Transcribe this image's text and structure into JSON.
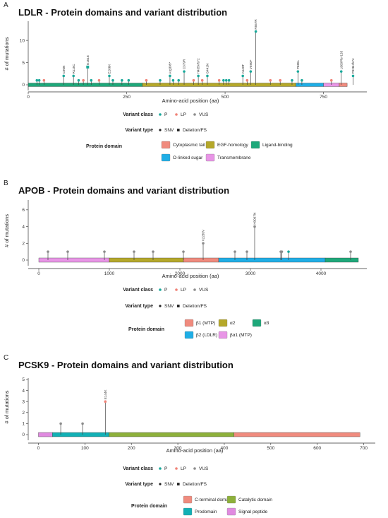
{
  "chart_data": [
    {
      "type": "lollipop",
      "panel": "A",
      "title": "LDLR - Protein domains and variant distribution",
      "xlabel": "Amino-acid position (aa)",
      "ylabel": "# of mutations",
      "xlim": [
        0,
        860
      ],
      "ylim": [
        0,
        14
      ],
      "xticks": [
        0,
        250,
        500,
        750
      ],
      "yticks": [
        0,
        5,
        10
      ],
      "domains": [
        {
          "name": "Ligand-binding",
          "start": 0,
          "end": 290
        },
        {
          "name": "EGF-homology",
          "start": 290,
          "end": 680
        },
        {
          "name": "O-linked sugar",
          "start": 680,
          "end": 750
        },
        {
          "name": "Transmembrane",
          "start": 750,
          "end": 790
        },
        {
          "name": "Cytoplasmic tail",
          "start": 790,
          "end": 810
        }
      ],
      "variants": [
        {
          "pos": 22,
          "count": 1,
          "cls": "P",
          "type": "SNV"
        },
        {
          "pos": 28,
          "count": 1,
          "cls": "P",
          "type": "SNV"
        },
        {
          "pos": 40,
          "count": 1,
          "cls": "LP",
          "type": "SNV"
        },
        {
          "pos": 90,
          "count": 2,
          "cls": "P",
          "type": "SNV",
          "label": "C90N"
        },
        {
          "pos": 115,
          "count": 2,
          "cls": "P",
          "type": "SNV",
          "label": "R115C"
        },
        {
          "pos": 128,
          "count": 1,
          "cls": "P",
          "type": "SNV"
        },
        {
          "pos": 140,
          "count": 1,
          "cls": "LP",
          "type": "SNV"
        },
        {
          "pos": 151,
          "count": 4,
          "cls": "P",
          "type": "Deletion/FS",
          "label": "E151E"
        },
        {
          "pos": 160,
          "count": 1,
          "cls": "P",
          "type": "SNV"
        },
        {
          "pos": 180,
          "count": 1,
          "cls": "LP",
          "type": "SNV"
        },
        {
          "pos": 206,
          "count": 2,
          "cls": "P",
          "type": "SNV",
          "label": "E206K"
        },
        {
          "pos": 215,
          "count": 1,
          "cls": "P",
          "type": "SNV"
        },
        {
          "pos": 238,
          "count": 1,
          "cls": "P",
          "type": "SNV"
        },
        {
          "pos": 255,
          "count": 1,
          "cls": "P",
          "type": "SNV"
        },
        {
          "pos": 300,
          "count": 1,
          "cls": "LP",
          "type": "SNV"
        },
        {
          "pos": 335,
          "count": 1,
          "cls": "P",
          "type": "SNV"
        },
        {
          "pos": 360,
          "count": 2,
          "cls": "P",
          "type": "SNV",
          "label": "Arg395*"
        },
        {
          "pos": 368,
          "count": 1,
          "cls": "P",
          "type": "SNV"
        },
        {
          "pos": 382,
          "count": 1,
          "cls": "P",
          "type": "SNV"
        },
        {
          "pos": 396,
          "count": 3,
          "cls": "P",
          "type": "SNV",
          "label": "C379R"
        },
        {
          "pos": 420,
          "count": 1,
          "cls": "LP",
          "type": "SNV"
        },
        {
          "pos": 432,
          "count": 2,
          "cls": "P",
          "type": "SNV",
          "label": "H435Vfs*2"
        },
        {
          "pos": 442,
          "count": 1,
          "cls": "LP",
          "type": "SNV"
        },
        {
          "pos": 455,
          "count": 2,
          "cls": "P",
          "type": "SNV",
          "label": "G441N"
        },
        {
          "pos": 485,
          "count": 1,
          "cls": "LP",
          "type": "SNV"
        },
        {
          "pos": 496,
          "count": 1,
          "cls": "P",
          "type": "SNV"
        },
        {
          "pos": 503,
          "count": 1,
          "cls": "P",
          "type": "SNV"
        },
        {
          "pos": 510,
          "count": 1,
          "cls": "P",
          "type": "SNV"
        },
        {
          "pos": 545,
          "count": 2,
          "cls": "P",
          "type": "SNV",
          "label": "A540T"
        },
        {
          "pos": 556,
          "count": 1,
          "cls": "LP",
          "type": "SNV"
        },
        {
          "pos": 565,
          "count": 3,
          "cls": "P",
          "type": "SNV",
          "label": "V590F"
        },
        {
          "pos": 578,
          "count": 12,
          "cls": "P",
          "type": "SNV",
          "label": "R557R"
        },
        {
          "pos": 615,
          "count": 1,
          "cls": "LP",
          "type": "SNV"
        },
        {
          "pos": 640,
          "count": 1,
          "cls": "LP",
          "type": "SNV"
        },
        {
          "pos": 670,
          "count": 1,
          "cls": "P",
          "type": "SNV"
        },
        {
          "pos": 685,
          "count": 3,
          "cls": "P",
          "type": "SNV",
          "label": "P685L"
        },
        {
          "pos": 695,
          "count": 1,
          "cls": "P",
          "type": "SNV"
        },
        {
          "pos": 770,
          "count": 1,
          "cls": "LP",
          "type": "SNV"
        },
        {
          "pos": 795,
          "count": 3,
          "cls": "P",
          "type": "SNV",
          "label": "L800Pfs*135"
        },
        {
          "pos": 825,
          "count": 2,
          "cls": "P",
          "type": "SNV",
          "label": "P826Hfs*4"
        }
      ],
      "legend": {
        "variant_class_title": "Variant class",
        "variant_class": [
          {
            "label": "P",
            "color": "#1aa99b"
          },
          {
            "label": "LP",
            "color": "#f08277"
          },
          {
            "label": "VUS",
            "color": "#8c8c8c"
          }
        ],
        "variant_type_title": "Variant type",
        "variant_type": [
          "SNV",
          "Deletion/FS"
        ],
        "protein_domain_title": "Protein domain",
        "protein_domain": [
          {
            "label": "Cytoplasmic tail",
            "color": "#f08b7e"
          },
          {
            "label": "EGF-homology",
            "color": "#b5a82a"
          },
          {
            "label": "Ligand-binding",
            "color": "#1ea87a"
          },
          {
            "label": "O-linked sugar",
            "color": "#1faee6"
          },
          {
            "label": "Transmembrane",
            "color": "#e895e6"
          }
        ]
      }
    },
    {
      "type": "lollipop",
      "panel": "B",
      "title": "APOB - Protein domains and variant distribution",
      "xlabel": "Amino-acid position (aa)",
      "ylabel": "# of mutations",
      "xlim": [
        -150,
        4650
      ],
      "ylim": [
        0,
        7
      ],
      "xticks": [
        0,
        1000,
        2000,
        3000,
        4000
      ],
      "yticks": [
        0,
        2,
        4,
        6
      ],
      "domains": [
        {
          "name": "βα1 (MTP)",
          "start": 0,
          "end": 1000
        },
        {
          "name": "α2",
          "start": 1000,
          "end": 2050
        },
        {
          "name": "β1 (MTP)",
          "start": 2050,
          "end": 2550
        },
        {
          "name": "β2 (LDLR)",
          "start": 2550,
          "end": 4060
        },
        {
          "name": "α3",
          "start": 4060,
          "end": 4530
        }
      ],
      "variants": [
        {
          "pos": 130,
          "count": 1,
          "cls": "VUS",
          "type": "SNV"
        },
        {
          "pos": 410,
          "count": 1,
          "cls": "VUS",
          "type": "SNV"
        },
        {
          "pos": 930,
          "count": 1,
          "cls": "VUS",
          "type": "SNV"
        },
        {
          "pos": 1350,
          "count": 1,
          "cls": "VUS",
          "type": "SNV"
        },
        {
          "pos": 1620,
          "count": 1,
          "cls": "VUS",
          "type": "SNV"
        },
        {
          "pos": 2050,
          "count": 1,
          "cls": "VUS",
          "type": "SNV"
        },
        {
          "pos": 2330,
          "count": 2,
          "cls": "VUS",
          "type": "SNV",
          "label": "V2285V"
        },
        {
          "pos": 2780,
          "count": 1,
          "cls": "VUS",
          "type": "SNV"
        },
        {
          "pos": 2950,
          "count": 1,
          "cls": "VUS",
          "type": "SNV"
        },
        {
          "pos": 3060,
          "count": 4,
          "cls": "VUS",
          "type": "SNV",
          "label": "H3067N"
        },
        {
          "pos": 3430,
          "count": 1,
          "cls": "VUS",
          "type": "SNV"
        },
        {
          "pos": 3445,
          "count": 1,
          "cls": "VUS",
          "type": "SNV"
        },
        {
          "pos": 3540,
          "count": 1,
          "cls": "P",
          "type": "SNV"
        },
        {
          "pos": 4420,
          "count": 1,
          "cls": "VUS",
          "type": "SNV"
        }
      ],
      "legend": {
        "variant_class_title": "Variant class",
        "variant_class": [
          {
            "label": "P",
            "color": "#1aa99b"
          },
          {
            "label": "LP",
            "color": "#f08277"
          },
          {
            "label": "VUS",
            "color": "#8c8c8c"
          }
        ],
        "variant_type_title": "Variant type",
        "variant_type": [
          "SNV",
          "Deletion/FS"
        ],
        "protein_domain_title": "Protein domain",
        "protein_domain": [
          {
            "label": "β1 (MTP)",
            "color": "#f08b7e"
          },
          {
            "label": "α2",
            "color": "#b5a82a"
          },
          {
            "label": "α3",
            "color": "#1ea87a"
          },
          {
            "label": "β2 (LDLR)",
            "color": "#1faee6"
          },
          {
            "label": "βα1 (MTP)",
            "color": "#e895e6"
          }
        ]
      }
    },
    {
      "type": "lollipop",
      "panel": "C",
      "title": "PCSK9 - Protein domains and variant distribution",
      "xlabel": "Amino-acid position (aa)",
      "ylabel": "# of mutations",
      "xlim": [
        -22,
        725
      ],
      "ylim": [
        0,
        5
      ],
      "xticks": [
        0,
        100,
        200,
        300,
        400,
        500,
        600,
        700
      ],
      "yticks": [
        0,
        1,
        2,
        3,
        4,
        5
      ],
      "domains": [
        {
          "name": "Signal peptide",
          "start": 0,
          "end": 30
        },
        {
          "name": "Prodomain",
          "start": 30,
          "end": 152
        },
        {
          "name": "Catalytic domain",
          "start": 152,
          "end": 421
        },
        {
          "name": "C-terminal domain",
          "start": 421,
          "end": 692
        }
      ],
      "variants": [
        {
          "pos": 48,
          "count": 1,
          "cls": "VUS",
          "type": "SNV"
        },
        {
          "pos": 95,
          "count": 1,
          "cls": "VUS",
          "type": "SNV"
        },
        {
          "pos": 144,
          "count": 3,
          "cls": "LP",
          "type": "SNV",
          "label": "E144K"
        }
      ],
      "legend": {
        "variant_class_title": "Variant class",
        "variant_class": [
          {
            "label": "P",
            "color": "#1aa99b"
          },
          {
            "label": "LP",
            "color": "#f08277"
          },
          {
            "label": "VUS",
            "color": "#8c8c8c"
          }
        ],
        "variant_type_title": "Variant type",
        "variant_type": [
          "SNV",
          "Deletion/FS"
        ],
        "protein_domain_title": "Protein domain",
        "protein_domain": [
          {
            "label": "C-terminal domain",
            "color": "#f08b7e"
          },
          {
            "label": "Catalytic domain",
            "color": "#8db03a"
          },
          {
            "label": "Prodomain",
            "color": "#12b0b5"
          },
          {
            "label": "Signal peptide",
            "color": "#e08ae0"
          }
        ]
      }
    }
  ]
}
